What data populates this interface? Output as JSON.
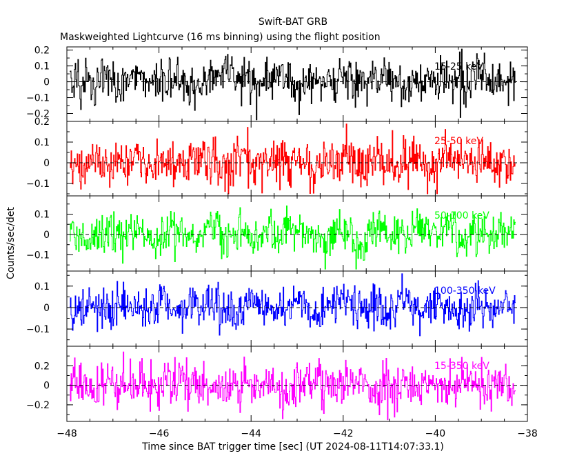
{
  "header": {
    "title": "Swift-BAT GRB",
    "subtitle": "Maskweighted Lightcurve (16 ms binning) using the flight position"
  },
  "axes": {
    "xlabel": "Time since BAT trigger time [sec] (UT 2024-08-11T14:07:33.1)",
    "ylabel": "Counts/sec/det"
  },
  "chart_data": {
    "type": "line",
    "style": "step",
    "bin_width_s": 0.016,
    "xlim": [
      -48.0,
      -38.0
    ],
    "xticks": [
      -48,
      -46,
      -44,
      -42,
      -40,
      -38
    ],
    "xtick_labels": [
      "−48",
      "−46",
      "−44",
      "−42",
      "−40",
      "−38"
    ],
    "zero_line": "dashed",
    "panels": [
      {
        "band": "15-25 keV",
        "color": "#000000",
        "ylim": [
          -0.25,
          0.22
        ],
        "yticks": [
          -0.2,
          -0.1,
          0,
          0.1,
          0.2
        ],
        "ytick_labels": [
          "−0.2",
          "−0.1",
          "0",
          "0.1",
          "0.2"
        ],
        "noise_sigma": 0.065,
        "values": [
          0.01,
          -0.06,
          0.09,
          -0.03,
          0.12,
          -0.1,
          0.04,
          0.07,
          -0.14,
          0.02,
          0.15,
          -0.05,
          -0.08,
          0.11,
          0.03,
          -0.12,
          0.06,
          -0.02,
          0.18,
          -0.09,
          0.0,
          0.08,
          -0.16,
          0.05,
          0.1,
          -0.04,
          -0.07,
          0.13,
          -0.01,
          0.04
        ]
      },
      {
        "band": "25-50 keV",
        "color": "#ff0000",
        "ylim": [
          -0.16,
          0.2
        ],
        "yticks": [
          -0.1,
          0,
          0.1,
          0.2
        ],
        "ytick_labels": [
          "−0.1",
          "0",
          "0.1",
          "0.2"
        ],
        "noise_sigma": 0.055,
        "values": [
          -0.02,
          0.07,
          -0.1,
          0.04,
          0.12,
          -0.06,
          0.01,
          -0.13,
          0.09,
          0.03,
          -0.05,
          0.15,
          -0.08,
          0.06,
          -0.01,
          0.1,
          -0.11,
          0.02,
          0.08,
          -0.04,
          0.13,
          -0.09,
          0.0,
          0.05,
          -0.12,
          0.07,
          0.11,
          -0.03,
          0.04,
          -0.06
        ]
      },
      {
        "band": "50-100 keV",
        "color": "#00ff00",
        "ylim": [
          -0.18,
          0.19
        ],
        "yticks": [
          -0.1,
          0,
          0.1
        ],
        "ytick_labels": [
          "−0.1",
          "0",
          "0.1"
        ],
        "noise_sigma": 0.05,
        "values": [
          0.03,
          -0.08,
          0.06,
          -0.02,
          0.1,
          -0.12,
          0.05,
          0.01,
          -0.06,
          0.13,
          -0.04,
          0.02,
          -0.1,
          0.08,
          0.0,
          -0.03,
          0.11,
          -0.07,
          0.04,
          -0.15,
          0.09,
          0.02,
          -0.05,
          0.07,
          -0.01,
          0.12,
          -0.09,
          0.03,
          -0.02,
          0.06
        ]
      },
      {
        "band": "100-350 keV",
        "color": "#0000ff",
        "ylim": [
          -0.18,
          0.17
        ],
        "yticks": [
          -0.1,
          0,
          0.1
        ],
        "ytick_labels": [
          "−0.1",
          "0",
          "0.1"
        ],
        "noise_sigma": 0.045,
        "values": [
          -0.01,
          0.05,
          -0.07,
          0.09,
          0.02,
          -0.04,
          0.11,
          -0.1,
          0.03,
          0.06,
          -0.02,
          -0.08,
          0.1,
          0.0,
          -0.05,
          0.07,
          -0.13,
          0.04,
          0.08,
          -0.03,
          0.01,
          -0.09,
          0.12,
          -0.06,
          0.05,
          0.02,
          -0.04,
          0.09,
          -0.07,
          0.03
        ]
      },
      {
        "band": "15-350 keV",
        "color": "#ff00ff",
        "ylim": [
          -0.37,
          0.4
        ],
        "yticks": [
          -0.2,
          0,
          0.2
        ],
        "ytick_labels": [
          "−0.2",
          "0",
          "0.2"
        ],
        "noise_sigma": 0.11,
        "values": [
          0.04,
          -0.12,
          0.18,
          -0.06,
          0.1,
          -0.22,
          0.07,
          0.15,
          -0.09,
          0.02,
          -0.17,
          0.24,
          -0.03,
          0.11,
          -0.14,
          0.06,
          0.2,
          -0.1,
          -0.01,
          0.13,
          -0.25,
          0.08,
          0.03,
          -0.07,
          0.16,
          -0.12,
          0.09,
          -0.04,
          0.21,
          -0.08
        ]
      }
    ]
  }
}
